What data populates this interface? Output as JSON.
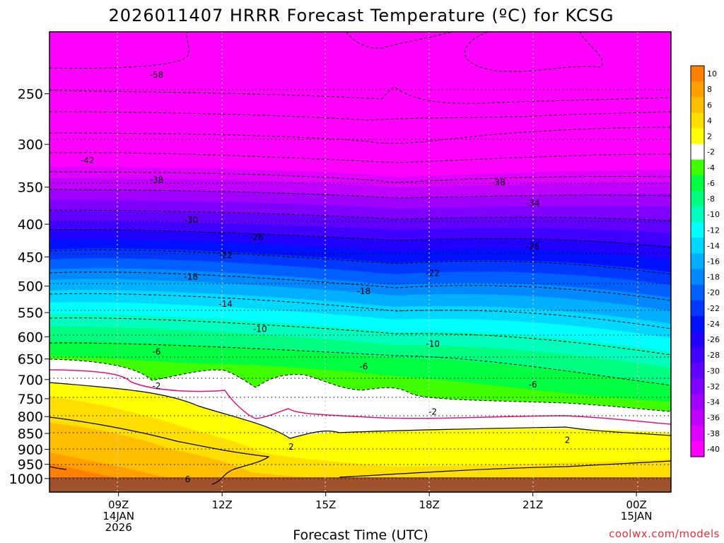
{
  "chart_data": {
    "type": "heatmap",
    "title": "2026011407 HRRR Forecast Temperature (ºC) for KCSG",
    "xlabel": "Forecast Time (UTC)",
    "ylabel": "",
    "watermark": "coolwx.com/models",
    "x_range_hours_utc": [
      7,
      25
    ],
    "y_range_hpa": [
      200,
      1050
    ],
    "y_scale": "log-pressure (inverted)",
    "x_ticks": [
      {
        "hour": 9,
        "lines": [
          "09Z",
          "14JAN",
          "2026"
        ]
      },
      {
        "hour": 12,
        "lines": [
          "12Z"
        ]
      },
      {
        "hour": 15,
        "lines": [
          "15Z"
        ]
      },
      {
        "hour": 18,
        "lines": [
          "18Z"
        ]
      },
      {
        "hour": 21,
        "lines": [
          "21Z"
        ]
      },
      {
        "hour": 24,
        "lines": [
          "00Z",
          "15JAN"
        ]
      }
    ],
    "y_ticks": [
      250,
      300,
      350,
      400,
      450,
      500,
      550,
      600,
      650,
      700,
      750,
      800,
      850,
      900,
      950,
      1000
    ],
    "grid": true,
    "legend": "right colorbar",
    "colorbar": {
      "labels": [
        "10",
        "8",
        "6",
        "4",
        "2",
        "-2",
        "-4",
        "-6",
        "-8",
        "-10",
        "-12",
        "-14",
        "-16",
        "-18",
        "-20",
        "-22",
        "-24",
        "-26",
        "-28",
        "-30",
        "-32",
        "-34",
        "-36",
        "-38",
        "-40"
      ],
      "colors": [
        "#ff8000",
        "#ff9f00",
        "#ffbf00",
        "#ffdf00",
        "#ffff00",
        "#ffffff",
        "#40ff00",
        "#00ff40",
        "#00ff80",
        "#00ffbf",
        "#00ffff",
        "#00d8ff",
        "#00b0ff",
        "#0088ff",
        "#0060ff",
        "#0038ff",
        "#0010ff",
        "#2000ff",
        "#4000ff",
        "#6000ff",
        "#8000ff",
        "#a000ff",
        "#c000ff",
        "#e000ff",
        "#ff00ff"
      ]
    },
    "contour_labels": [
      {
        "text": "-58",
        "hour": 10.1,
        "hpa": 233
      },
      {
        "text": "-42",
        "hour": 8.1,
        "hpa": 317
      },
      {
        "text": "-38",
        "hour": 10.1,
        "hpa": 340
      },
      {
        "text": "-38",
        "hour": 20.0,
        "hpa": 343
      },
      {
        "text": "-34",
        "hour": 21.0,
        "hpa": 370
      },
      {
        "text": "-30",
        "hour": 11.1,
        "hpa": 393
      },
      {
        "text": "-26",
        "hour": 13.0,
        "hpa": 418
      },
      {
        "text": "-26",
        "hour": 21.0,
        "hpa": 432
      },
      {
        "text": "-22",
        "hour": 12.1,
        "hpa": 446
      },
      {
        "text": "-22",
        "hour": 18.1,
        "hpa": 476
      },
      {
        "text": "-18",
        "hour": 11.1,
        "hpa": 482
      },
      {
        "text": "-18",
        "hour": 16.1,
        "hpa": 508
      },
      {
        "text": "-14",
        "hour": 12.1,
        "hpa": 532
      },
      {
        "text": "-10",
        "hour": 13.1,
        "hpa": 582
      },
      {
        "text": "-10",
        "hour": 18.1,
        "hpa": 614
      },
      {
        "text": "-6",
        "hour": 10.1,
        "hpa": 632
      },
      {
        "text": "-6",
        "hour": 16.1,
        "hpa": 666
      },
      {
        "text": "-6",
        "hour": 21.0,
        "hpa": 711
      },
      {
        "text": "-2",
        "hour": 10.1,
        "hpa": 715
      },
      {
        "text": "-2",
        "hour": 18.1,
        "hpa": 784
      },
      {
        "text": "2",
        "hour": 14.0,
        "hpa": 890
      },
      {
        "text": "2",
        "hour": 22.0,
        "hpa": 868
      },
      {
        "text": "6",
        "hour": 11.0,
        "hpa": 1000
      }
    ]
  }
}
